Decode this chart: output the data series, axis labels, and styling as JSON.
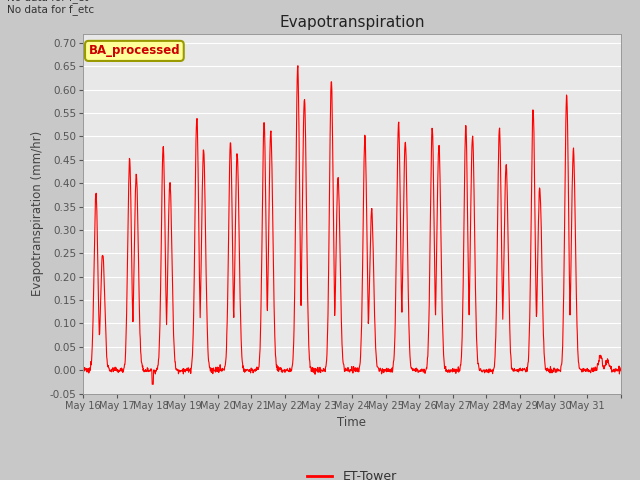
{
  "title": "Evapotranspiration",
  "ylabel": "Evapotranspiration (mm/hr)",
  "xlabel": "Time",
  "ylim": [
    -0.05,
    0.72
  ],
  "yticks": [
    -0.05,
    0.0,
    0.05,
    0.1,
    0.15,
    0.2,
    0.25,
    0.3,
    0.35,
    0.4,
    0.45,
    0.5,
    0.55,
    0.6,
    0.65,
    0.7
  ],
  "xtick_labels": [
    "May 16",
    "May 17",
    "May 18",
    "May 19",
    "May 20",
    "May 21",
    "May 22",
    "May 23",
    "May 24",
    "May 25",
    "May 26",
    "May 27",
    "May 28",
    "May 29",
    "May 30",
    "May 31"
  ],
  "line_color": "#ff0000",
  "line_width": 0.8,
  "fig_bg_color": "#c8c8c8",
  "plot_bg_color": "#e8e8e8",
  "grid_color": "#ffffff",
  "annotation_text": "No data for f_et\nNo data for f_etc",
  "legend_label": "ET-Tower",
  "box_label": "BA_processed",
  "box_facecolor": "#ffff99",
  "box_edgecolor": "#999900",
  "box_textcolor": "#cc0000",
  "day_peaks": [
    0.38,
    0.45,
    0.48,
    0.54,
    0.49,
    0.53,
    0.65,
    0.62,
    0.5,
    0.53,
    0.52,
    0.52,
    0.52,
    0.56,
    0.59,
    0.03
  ],
  "day_peaks2": [
    0.25,
    0.42,
    0.4,
    0.47,
    0.46,
    0.51,
    0.58,
    0.41,
    0.34,
    0.49,
    0.48,
    0.5,
    0.44,
    0.39,
    0.47,
    0.02
  ]
}
